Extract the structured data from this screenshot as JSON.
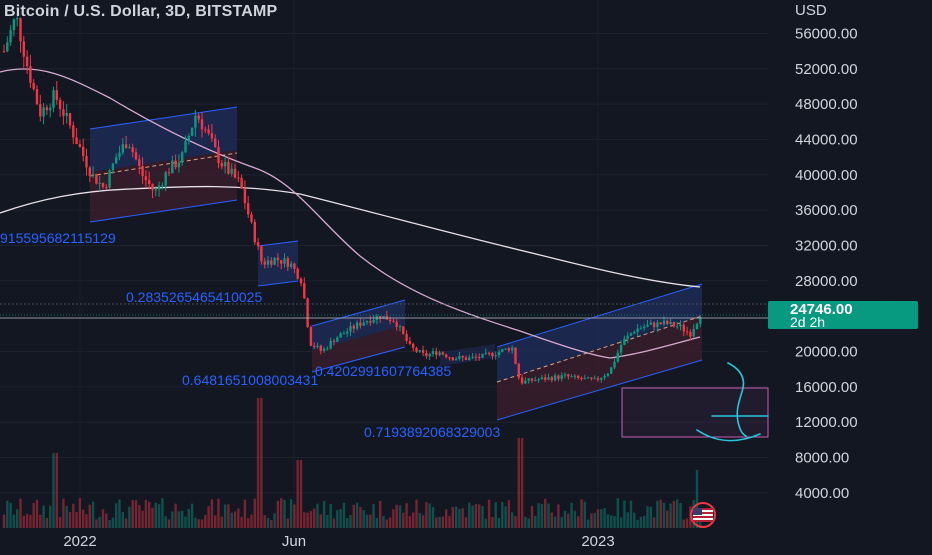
{
  "chart_data": {
    "type": "candlestick",
    "title": "Bitcoin / U.S. Dollar, 3D, BITSTAMP",
    "currency": "USD",
    "y_ticks": [
      {
        "value": 56000,
        "label": "56000.00"
      },
      {
        "value": 52000,
        "label": "52000.00"
      },
      {
        "value": 48000,
        "label": "48000.00"
      },
      {
        "value": 44000,
        "label": "44000.00"
      },
      {
        "value": 40000,
        "label": "40000.00"
      },
      {
        "value": 36000,
        "label": "36000.00"
      },
      {
        "value": 32000,
        "label": "32000.00"
      },
      {
        "value": 28000,
        "label": "28000.00"
      },
      {
        "value": 20000,
        "label": "20000.00"
      },
      {
        "value": 16000,
        "label": "16000.00"
      },
      {
        "value": 12000,
        "label": "12000.00"
      },
      {
        "value": 8000,
        "label": "8000.00"
      },
      {
        "value": 4000,
        "label": "4000.00"
      }
    ],
    "x_ticks": [
      "2022",
      "Jun",
      "2023"
    ],
    "last_price": {
      "value": 24746.0,
      "label": "24746.00",
      "countdown": "2d 2h"
    },
    "annotations": [
      "915595682115129",
      "0.2835265465410025",
      "0.6481651008003431",
      "0.4202991607764385",
      "0.7193892068329003"
    ],
    "colors": {
      "background": "#131722",
      "up": "#089981",
      "down": "#f23645",
      "channel_line": "#2962ff",
      "channel_upper_fill": "#1e2a55",
      "channel_lower_fill": "#3a1d2a",
      "ma_long": "#e8e0e8",
      "ma_short": "#d8a8d0",
      "annotation_text": "#2962ff",
      "target_box": "#c95bb5",
      "drawing": "#26c6da",
      "price_label": "#089981",
      "axis_text": "#d1d4dc"
    },
    "icons": [
      "us-flag-icon"
    ]
  }
}
